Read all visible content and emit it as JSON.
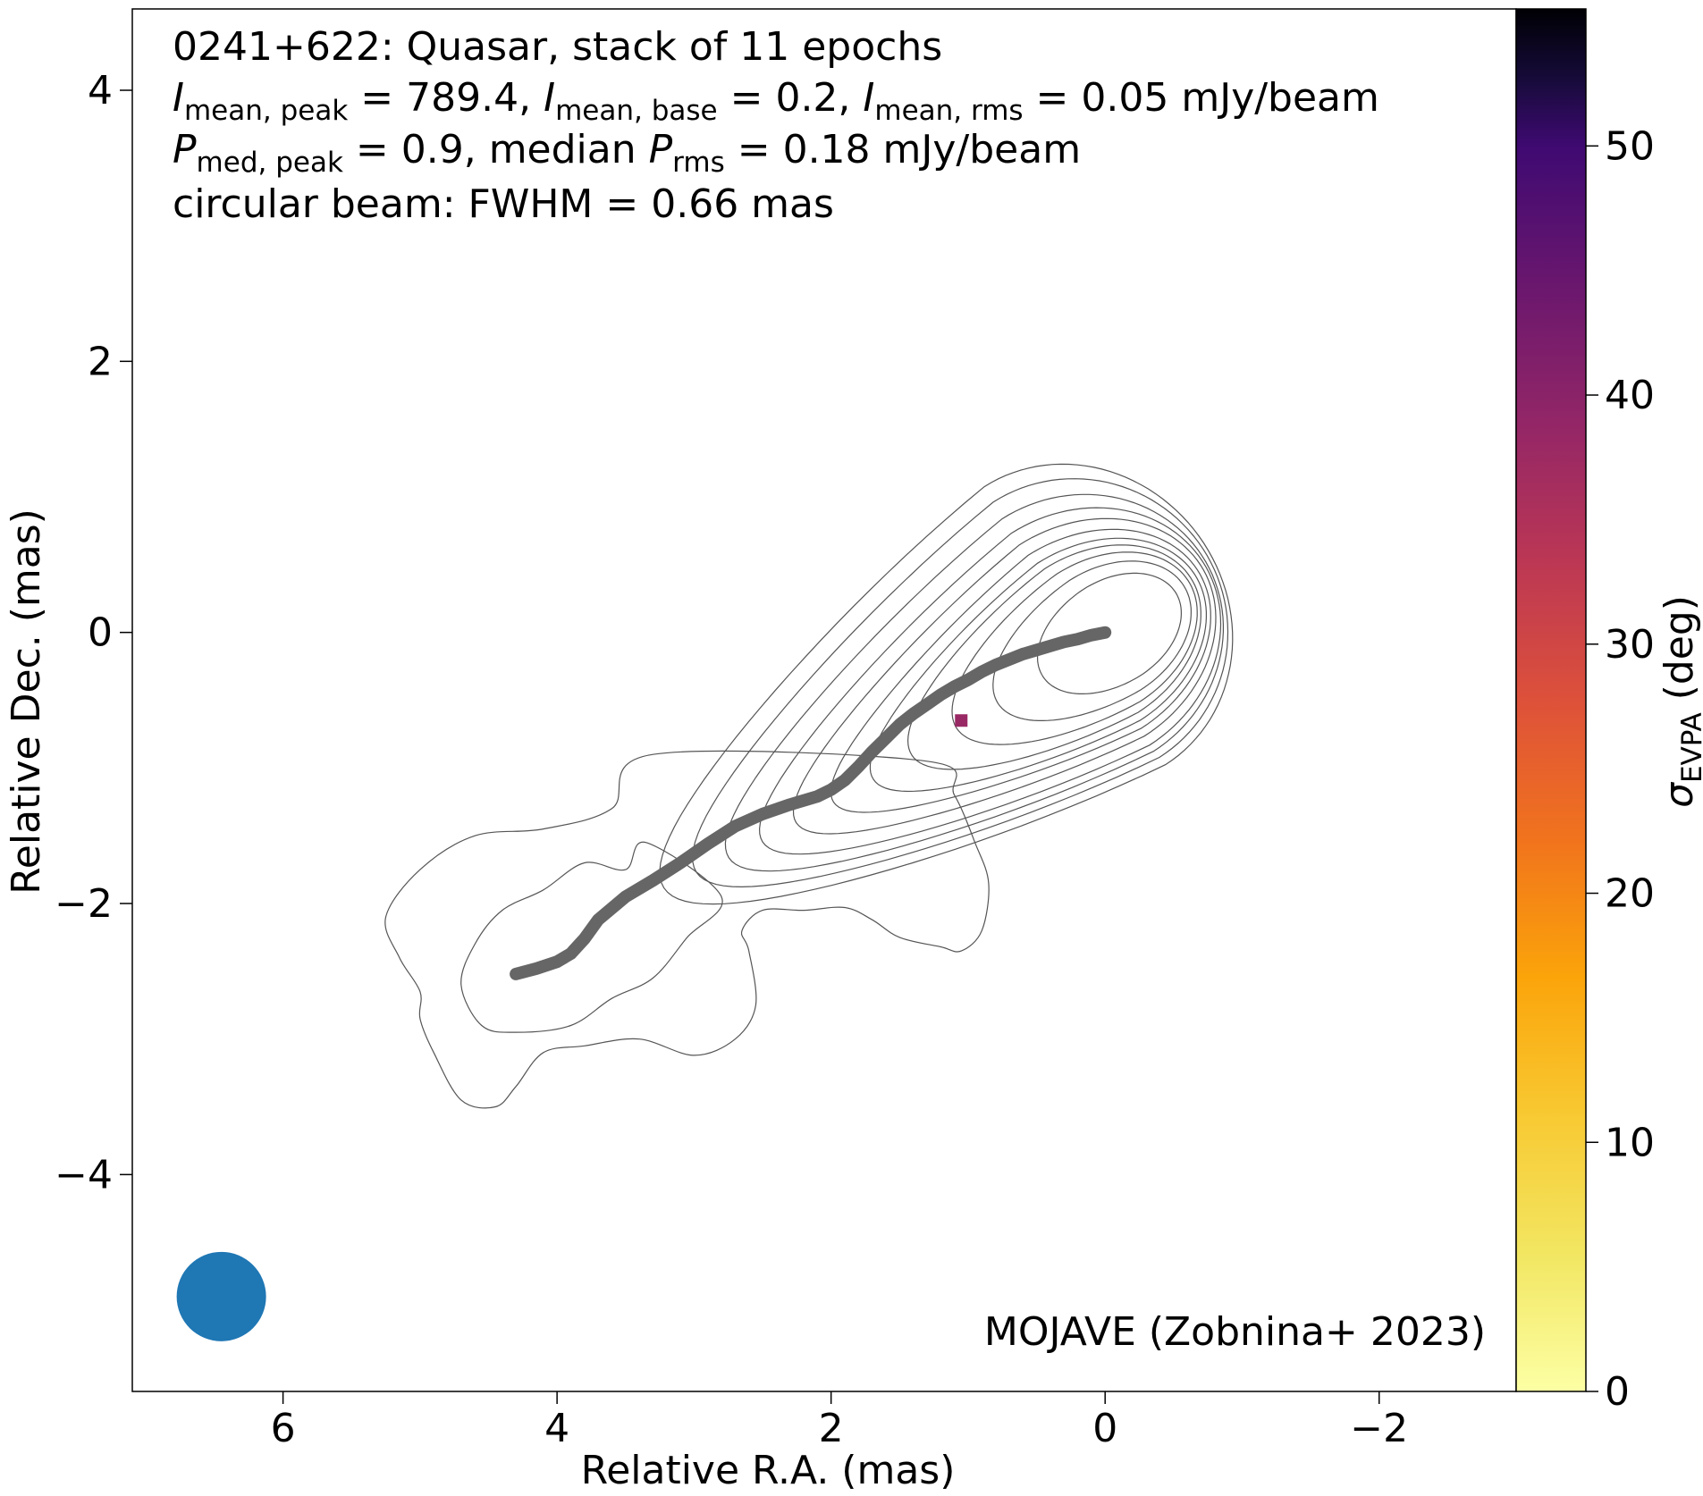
{
  "chart_data": {
    "type": "scatter",
    "title_lines": {
      "line1": "0241+622: Quasar, stack of 11 epochs",
      "line2": {
        "i_peak_sym": "I",
        "i_peak_sub": "mean, peak",
        "i_peak_val": " = 789.4, ",
        "i_base_sym": "I",
        "i_base_sub": "mean, base",
        "i_base_val": " = 0.2, ",
        "i_rms_sym": "I",
        "i_rms_sub": "mean, rms",
        "i_rms_val": " = 0.05 mJy/beam"
      },
      "line3": {
        "p_peak_sym": "P",
        "p_peak_sub": "med, peak",
        "p_peak_val": " = 0.9, median ",
        "p_rms_sym": "P",
        "p_rms_sub": "rms",
        "p_rms_val": " = 0.18 mJy/beam"
      },
      "line4": "circular beam: FWHM = 0.66 mas"
    },
    "credit": "MOJAVE (Zobnina+ 2023)",
    "xlabel": "Relative R.A. (mas)",
    "ylabel": "Relative Dec. (mas)",
    "xlim": [
      7.1,
      -3.0
    ],
    "ylim": [
      -5.6,
      4.6
    ],
    "xticks": [
      6,
      4,
      2,
      0,
      -2
    ],
    "xtick_labels": [
      "6",
      "4",
      "2",
      "0",
      "−2"
    ],
    "yticks": [
      4,
      2,
      0,
      -2,
      -4
    ],
    "ytick_labels": [
      "4",
      "2",
      "0",
      "−2",
      "−4"
    ],
    "colorbar": {
      "label_sym": "σ",
      "label_sub": "EVPA",
      "label_unit": " (deg)",
      "range": [
        0,
        55.5
      ],
      "ticks": [
        0,
        10,
        20,
        30,
        40,
        50
      ],
      "tick_labels": [
        "0",
        "10",
        "20",
        "30",
        "40",
        "50"
      ],
      "colormap": "inferno_r"
    },
    "ridge_line": {
      "color": "#666666",
      "x": [
        4.3,
        4.15,
        4.0,
        3.9,
        3.8,
        3.7,
        3.5,
        3.3,
        3.1,
        2.9,
        2.7,
        2.5,
        2.3,
        2.1,
        2.0,
        1.9,
        1.8,
        1.7,
        1.6,
        1.5,
        1.4,
        1.3,
        1.2,
        1.1,
        1.0,
        0.9,
        0.8,
        0.7,
        0.6,
        0.5,
        0.4,
        0.3,
        0.2,
        0.1,
        0.0
      ],
      "y": [
        -2.52,
        -2.48,
        -2.43,
        -2.37,
        -2.26,
        -2.12,
        -1.95,
        -1.83,
        -1.7,
        -1.56,
        -1.43,
        -1.34,
        -1.27,
        -1.21,
        -1.16,
        -1.09,
        -0.99,
        -0.88,
        -0.78,
        -0.68,
        -0.6,
        -0.53,
        -0.46,
        -0.4,
        -0.35,
        -0.29,
        -0.24,
        -0.2,
        -0.16,
        -0.13,
        -0.1,
        -0.07,
        -0.05,
        -0.02,
        0.0
      ]
    },
    "evpa_points": [
      {
        "x": 1.05,
        "y": -0.65,
        "sigma_evpa": 38
      }
    ],
    "beam": {
      "x": 6.45,
      "y": -4.9,
      "fwhm_mas": 0.66,
      "color": "#1f77b4"
    },
    "contours": {
      "color": "#555555",
      "levels": [
        {
          "cx": -0.05,
          "cy": 0.0,
          "rx": 0.55,
          "ry": 0.38,
          "ext": 0.05
        },
        {
          "cx": 0.0,
          "cy": -0.02,
          "rx": 0.68,
          "ry": 0.48,
          "ext": 0.25
        },
        {
          "cx": 0.05,
          "cy": -0.04,
          "rx": 0.78,
          "ry": 0.56,
          "ext": 0.45
        },
        {
          "cx": 0.1,
          "cy": -0.06,
          "rx": 0.86,
          "ry": 0.63,
          "ext": 0.7
        },
        {
          "cx": 0.12,
          "cy": -0.07,
          "rx": 0.92,
          "ry": 0.69,
          "ext": 0.95
        },
        {
          "cx": 0.15,
          "cy": -0.07,
          "rx": 0.98,
          "ry": 0.76,
          "ext": 1.2
        },
        {
          "cx": 0.17,
          "cy": -0.06,
          "rx": 1.03,
          "ry": 0.84,
          "ext": 1.45
        },
        {
          "cx": 0.18,
          "cy": -0.05,
          "rx": 1.06,
          "ry": 0.93,
          "ext": 1.7
        },
        {
          "cx": 0.2,
          "cy": -0.02,
          "rx": 1.08,
          "ry": 1.02,
          "ext": 1.95
        },
        {
          "cx": 0.21,
          "cy": 0.02,
          "rx": 1.1,
          "ry": 1.12,
          "ext": 2.2
        },
        {
          "cx": 0.22,
          "cy": 0.05,
          "rx": 1.12,
          "ry": 1.22,
          "ext": 2.45
        }
      ],
      "outer_1": {
        "x": [
          3.35,
          3.5,
          3.8,
          4.1,
          4.4,
          4.6,
          4.7,
          4.55,
          4.3,
          3.9,
          3.6,
          3.3,
          3.05,
          2.8
        ],
        "y": [
          -1.55,
          -1.75,
          -1.7,
          -1.9,
          -2.05,
          -2.3,
          -2.6,
          -2.9,
          -2.95,
          -2.9,
          -2.7,
          -2.55,
          -2.25,
          -1.95
        ]
      },
      "outer_2": {
        "x": [
          3.3,
          3.6,
          4.1,
          4.6,
          5.0,
          5.25,
          5.15,
          5.0,
          5.0,
          4.9,
          4.7,
          4.45,
          4.3,
          4.1,
          3.8,
          3.4,
          3.0,
          2.7,
          2.55,
          2.6,
          2.65,
          2.5,
          2.2,
          1.9,
          1.7,
          1.5,
          1.2,
          1.05,
          0.9,
          0.85,
          0.95,
          1.1,
          1.3
        ],
        "y": [
          -0.9,
          -1.3,
          -1.45,
          -1.5,
          -1.75,
          -2.1,
          -2.4,
          -2.65,
          -2.85,
          -3.1,
          -3.45,
          -3.5,
          -3.35,
          -3.1,
          -3.05,
          -3.0,
          -3.12,
          -3.0,
          -2.75,
          -2.35,
          -2.2,
          -2.05,
          -2.05,
          -2.03,
          -2.12,
          -2.25,
          -2.32,
          -2.35,
          -2.2,
          -1.85,
          -1.55,
          -1.2,
          -0.95
        ]
      }
    },
    "ylim_note": ""
  }
}
